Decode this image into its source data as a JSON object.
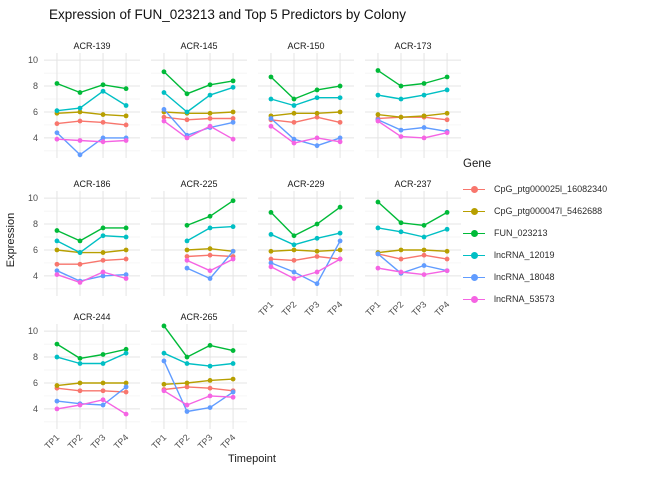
{
  "title": {
    "text": "Expression of FUN_023213 and Top 5 Predictors by Colony"
  },
  "axes": {
    "x_title": "Timepoint",
    "y_title": "Expression",
    "x_ticks": [
      "TP1",
      "TP2",
      "TP3",
      "TP4"
    ],
    "y_ticks": [
      10,
      8,
      6,
      4
    ]
  },
  "legend": {
    "title": "Gene",
    "entries": [
      {
        "label": "CpG_ptg000025l_16082340",
        "color": "#F8766D"
      },
      {
        "label": "CpG_ptg000047l_5462688",
        "color": "#B79F00"
      },
      {
        "label": "FUN_023213",
        "color": "#00BA38"
      },
      {
        "label": "lncRNA_12019",
        "color": "#00BFC4"
      },
      {
        "label": "lncRNA_18048",
        "color": "#619CFF"
      },
      {
        "label": "lncRNA_53573",
        "color": "#F564E3"
      }
    ]
  },
  "chart_data": {
    "type": "line",
    "title": "Expression of FUN_023213 and Top 5 Predictors by Colony",
    "xlabel": "Timepoint",
    "ylabel": "Expression",
    "x": [
      "TP1",
      "TP2",
      "TP3",
      "TP4"
    ],
    "ylim": [
      2.45,
      10.55
    ],
    "y_breaks": [
      4,
      6,
      8,
      10
    ],
    "y_minor_breaks": [
      3,
      5,
      7,
      9
    ],
    "grid": true,
    "legend_position": "right",
    "series_names": [
      "CpG_ptg000025l_16082340",
      "CpG_ptg000047l_5462688",
      "FUN_023213",
      "lncRNA_12019",
      "lncRNA_18048",
      "lncRNA_53573"
    ],
    "facets": [
      {
        "colony": "ACR-139",
        "show_x_labels": false,
        "values": [
          [
            5.1,
            5.3,
            5.2,
            5.0
          ],
          [
            5.9,
            6.0,
            5.8,
            5.7
          ],
          [
            8.2,
            7.5,
            8.1,
            7.8
          ],
          [
            6.1,
            6.3,
            7.6,
            6.5
          ],
          [
            4.4,
            2.7,
            4.0,
            4.0
          ],
          [
            3.9,
            3.8,
            3.7,
            3.8
          ]
        ]
      },
      {
        "colony": "ACR-145",
        "show_x_labels": false,
        "values": [
          [
            5.6,
            5.4,
            5.5,
            5.5
          ],
          [
            6.0,
            5.9,
            5.9,
            6.0
          ],
          [
            9.1,
            7.4,
            8.1,
            8.4
          ],
          [
            7.5,
            6.0,
            7.3,
            7.9
          ],
          [
            6.2,
            4.2,
            4.8,
            5.2
          ],
          [
            5.3,
            4.0,
            4.9,
            3.9
          ]
        ]
      },
      {
        "colony": "ACR-150",
        "show_x_labels": false,
        "values": [
          [
            5.4,
            5.2,
            5.6,
            5.2
          ],
          [
            5.7,
            5.9,
            5.9,
            6.0
          ],
          [
            8.7,
            7.0,
            7.7,
            8.0
          ],
          [
            7.0,
            6.5,
            7.1,
            7.1
          ],
          [
            5.5,
            3.9,
            3.4,
            4.0
          ],
          [
            4.9,
            3.6,
            4.0,
            3.7
          ]
        ]
      },
      {
        "colony": "ACR-173",
        "show_x_labels": false,
        "values": [
          [
            5.5,
            5.6,
            5.6,
            5.4
          ],
          [
            5.8,
            5.6,
            5.7,
            5.9
          ],
          [
            9.2,
            8.0,
            8.2,
            8.7
          ],
          [
            7.3,
            7.0,
            7.3,
            7.7
          ],
          [
            5.4,
            4.6,
            4.8,
            4.5
          ],
          [
            5.3,
            4.1,
            4.0,
            4.4
          ]
        ]
      },
      {
        "colony": "ACR-186",
        "show_x_labels": false,
        "values": [
          [
            4.9,
            4.9,
            5.2,
            5.3
          ],
          [
            6.0,
            5.8,
            5.8,
            6.0
          ],
          [
            7.5,
            6.7,
            7.7,
            7.7
          ],
          [
            6.7,
            5.8,
            7.1,
            7.0
          ],
          [
            4.4,
            3.6,
            4.0,
            4.1
          ],
          [
            4.1,
            3.5,
            4.3,
            3.8
          ]
        ]
      },
      {
        "colony": "ACR-225",
        "show_x_labels": false,
        "values": [
          [
            null,
            5.5,
            5.6,
            5.5
          ],
          [
            null,
            6.0,
            6.1,
            5.9
          ],
          [
            null,
            7.9,
            8.6,
            9.8
          ],
          [
            null,
            6.7,
            7.7,
            7.8
          ],
          [
            null,
            4.6,
            3.8,
            5.9
          ],
          [
            null,
            5.2,
            4.4,
            5.3
          ]
        ]
      },
      {
        "colony": "ACR-229",
        "show_x_labels": true,
        "values": [
          [
            5.3,
            5.2,
            5.5,
            5.3
          ],
          [
            5.9,
            6.0,
            5.9,
            6.0
          ],
          [
            8.9,
            7.1,
            8.0,
            9.3
          ],
          [
            7.2,
            6.4,
            6.9,
            7.3
          ],
          [
            5.0,
            4.3,
            3.4,
            6.7
          ],
          [
            4.7,
            3.8,
            4.3,
            5.3
          ]
        ]
      },
      {
        "colony": "ACR-237",
        "show_x_labels": true,
        "values": [
          [
            5.7,
            5.3,
            5.6,
            5.3
          ],
          [
            5.8,
            6.0,
            6.0,
            5.9
          ],
          [
            9.7,
            8.1,
            7.9,
            8.9
          ],
          [
            7.7,
            7.4,
            7.0,
            7.6
          ],
          [
            5.7,
            4.2,
            4.8,
            4.4
          ],
          [
            4.6,
            4.3,
            4.1,
            4.4
          ]
        ]
      },
      {
        "colony": "ACR-244",
        "show_x_labels": true,
        "values": [
          [
            5.6,
            5.4,
            5.4,
            5.3
          ],
          [
            5.8,
            6.0,
            6.0,
            6.0
          ],
          [
            9.0,
            7.9,
            8.2,
            8.6
          ],
          [
            8.0,
            7.5,
            7.5,
            8.3
          ],
          [
            4.6,
            4.4,
            4.3,
            5.7
          ],
          [
            4.0,
            4.3,
            4.7,
            3.6
          ]
        ]
      },
      {
        "colony": "ACR-265",
        "show_x_labels": true,
        "values": [
          [
            5.5,
            5.7,
            5.6,
            5.4
          ],
          [
            5.9,
            6.0,
            6.2,
            6.3
          ],
          [
            10.4,
            8.0,
            8.9,
            8.5
          ],
          [
            8.3,
            7.5,
            7.3,
            7.5
          ],
          [
            7.7,
            3.8,
            4.1,
            5.3
          ],
          [
            5.4,
            4.3,
            5.0,
            4.9
          ]
        ]
      }
    ]
  }
}
